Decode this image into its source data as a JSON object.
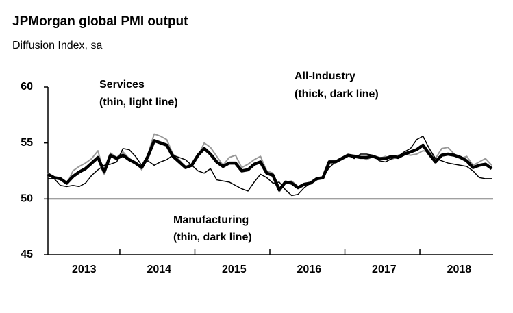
{
  "chart_data": {
    "type": "line",
    "title": "JPMorgan global PMI output",
    "subtitle": "Diffusion Index, sa",
    "annotations": [
      "Services",
      "(thin, light line)",
      "All-Industry",
      "(thick, dark line)",
      "Manufacturing",
      "(thin, dark line)"
    ],
    "categories": [
      null,
      null,
      null,
      null,
      null,
      null,
      "2013",
      null,
      null,
      null,
      null,
      null,
      null,
      null,
      null,
      null,
      null,
      null,
      "2014",
      null,
      null,
      null,
      null,
      null,
      null,
      null,
      null,
      null,
      null,
      null,
      "2015",
      null,
      null,
      null,
      null,
      null,
      null,
      null,
      null,
      null,
      null,
      null,
      "2016",
      null,
      null,
      null,
      null,
      null,
      null,
      null,
      null,
      null,
      null,
      null,
      "2017",
      null,
      null,
      null,
      null,
      null,
      null,
      null,
      null,
      null,
      null,
      null,
      "2018",
      null,
      null,
      null,
      null,
      null
    ],
    "series": [
      {
        "name": "Services",
        "color": "#999999",
        "width": 2,
        "values": [
          52.3,
          51.9,
          51.7,
          51.3,
          52.5,
          52.9,
          53.2,
          53.6,
          54.3,
          52.2,
          54.1,
          53.7,
          54.2,
          53.6,
          53.3,
          52.6,
          54.0,
          55.8,
          55.6,
          55.3,
          54.0,
          53.5,
          52.8,
          53.1,
          53.8,
          55.0,
          54.6,
          53.8,
          53.0,
          53.7,
          53.9,
          52.8,
          53.1,
          53.5,
          53.8,
          52.5,
          52.3,
          50.6,
          51.5,
          51.6,
          51.1,
          51.3,
          51.5,
          51.7,
          51.8,
          53.4,
          53.4,
          53.5,
          53.8,
          53.9,
          53.8,
          53.5,
          53.8,
          53.6,
          53.8,
          53.5,
          53.9,
          54.0,
          53.9,
          54.0,
          54.3,
          54.2,
          53.6,
          54.5,
          54.6,
          54.0,
          53.6,
          53.8,
          53.0,
          53.3,
          53.6,
          53.0
        ]
      },
      {
        "name": "Manufacturing",
        "color": "#000000",
        "width": 1.5,
        "values": [
          51.8,
          51.8,
          51.2,
          51.1,
          51.2,
          51.1,
          51.4,
          52.1,
          52.6,
          53.0,
          53.1,
          53.3,
          54.5,
          54.4,
          53.8,
          53.0,
          53.4,
          53.0,
          53.3,
          53.5,
          53.9,
          53.7,
          53.5,
          53.0,
          52.5,
          52.3,
          52.7,
          51.7,
          51.6,
          51.5,
          51.2,
          50.9,
          50.7,
          51.5,
          52.2,
          51.9,
          51.4,
          51.5,
          50.8,
          50.3,
          50.4,
          51.0,
          51.4,
          51.7,
          51.9,
          52.8,
          53.3,
          53.5,
          53.9,
          53.6,
          54.0,
          54.0,
          53.9,
          53.4,
          53.3,
          53.6,
          53.8,
          54.2,
          54.5,
          55.3,
          55.6,
          54.5,
          53.6,
          53.4,
          53.2,
          53.1,
          53.0,
          52.9,
          52.5,
          51.9,
          51.8,
          51.8
        ]
      },
      {
        "name": "All-Industry",
        "color": "#000000",
        "width": 4.5,
        "values": [
          52.2,
          51.9,
          51.8,
          51.4,
          52.0,
          52.4,
          52.7,
          53.2,
          53.7,
          52.4,
          53.9,
          53.6,
          53.9,
          53.5,
          53.2,
          52.8,
          53.8,
          55.2,
          55.0,
          54.8,
          53.8,
          53.3,
          52.8,
          53.0,
          53.9,
          54.5,
          54.0,
          53.3,
          52.9,
          53.2,
          53.2,
          52.5,
          52.6,
          53.1,
          53.3,
          52.3,
          52.1,
          50.8,
          51.5,
          51.4,
          51.0,
          51.3,
          51.4,
          51.8,
          51.9,
          53.3,
          53.3,
          53.6,
          53.9,
          53.8,
          53.7,
          53.7,
          53.8,
          53.6,
          53.6,
          53.8,
          53.7,
          54.0,
          54.2,
          54.4,
          54.8,
          54.0,
          53.3,
          53.9,
          54.0,
          53.9,
          53.7,
          53.4,
          52.8,
          53.0,
          53.1,
          52.7
        ]
      }
    ],
    "ylim": [
      45,
      60
    ],
    "yticks": [
      45,
      50,
      55,
      60
    ],
    "hline": 50,
    "legend": false
  }
}
